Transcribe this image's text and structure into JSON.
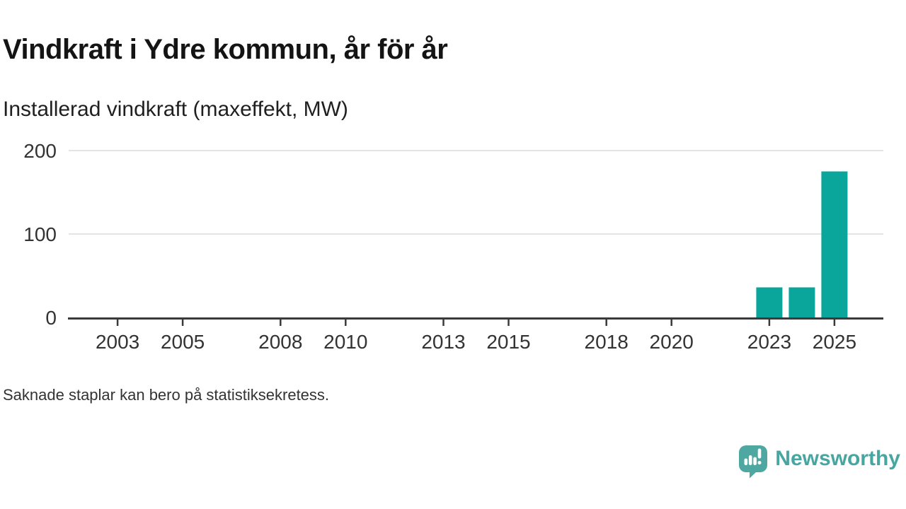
{
  "header": {
    "title": "Vindkraft i Ydre kommun, år för år",
    "subtitle": "Installerad vindkraft (maxeffekt, MW)"
  },
  "footer": {
    "note": "Saknade staplar kan bero på statistiksekretess.",
    "brand": "Newsworthy"
  },
  "colors": {
    "bar": "#0aa69c",
    "grid": "#dcdcdc",
    "axis": "#3a3a3a",
    "tick_label": "#333333",
    "brand_teal": "#48a6a0"
  },
  "chart_data": {
    "type": "bar",
    "title": "Vindkraft i Ydre kommun, år för år",
    "subtitle": "Installerad vindkraft (maxeffekt, MW)",
    "xlabel": "",
    "ylabel": "",
    "unit": "MW",
    "categories": [
      2023,
      2024,
      2025
    ],
    "values": [
      36,
      36,
      175
    ],
    "x_domain_years": [
      2002,
      2026
    ],
    "x_tick_labels": [
      "2003",
      "2005",
      "2008",
      "2010",
      "2013",
      "2015",
      "2018",
      "2020",
      "2023",
      "2025"
    ],
    "y_ticks": [
      0,
      100,
      200
    ],
    "ylim": [
      0,
      200
    ],
    "grid": "horizontal-only",
    "legend": "none",
    "footnote": "Saknade staplar kan bero på statistiksekretess."
  }
}
